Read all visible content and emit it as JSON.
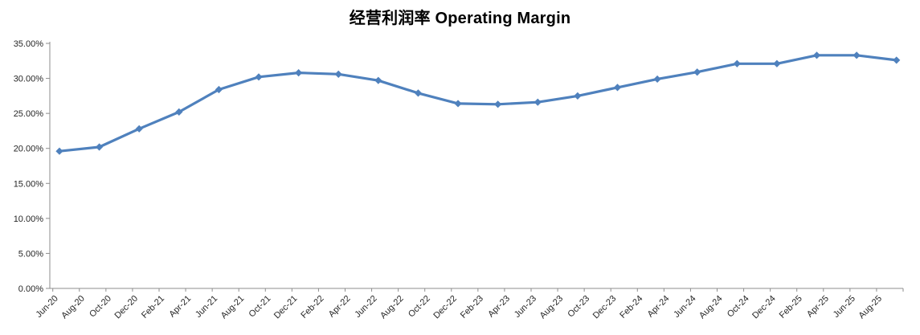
{
  "chart_data": {
    "type": "line",
    "title": "经营利润率 Operating Margin",
    "series": [
      {
        "name": "经营利润率 Operating Margin",
        "x": [
          "Jun-20",
          "Sep-20",
          "Dec-20",
          "Mar-21",
          "Jun-21",
          "Sep-21",
          "Dec-21",
          "Mar-22",
          "Jun-22",
          "Sep-22",
          "Dec-22",
          "Mar-23",
          "Jun-23",
          "Sep-23",
          "Dec-23",
          "Mar-24",
          "Jun-24",
          "Sep-24",
          "Dec-24",
          "Mar-25",
          "Jun-25",
          "Sep-25"
        ],
        "values": [
          19.6,
          20.2,
          22.8,
          25.2,
          28.4,
          30.2,
          30.8,
          30.6,
          29.7,
          27.9,
          26.4,
          26.3,
          26.6,
          27.5,
          28.7,
          29.9,
          30.9,
          32.1,
          32.1,
          33.3,
          33.3,
          32.6
        ],
        "unit": "%"
      }
    ],
    "x_axis": {
      "tick_labels": [
        "Jun-20",
        "Aug-20",
        "Oct-20",
        "Dec-20",
        "Feb-21",
        "Apr-21",
        "Jun-21",
        "Aug-21",
        "Oct-21",
        "Dec-21",
        "Feb-22",
        "Apr-22",
        "Jun-22",
        "Aug-22",
        "Oct-22",
        "Dec-22",
        "Feb-23",
        "Apr-23",
        "Jun-23",
        "Aug-23",
        "Oct-23",
        "Dec-23",
        "Feb-24",
        "Apr-24",
        "Jun-24",
        "Aug-24",
        "Oct-24",
        "Dec-24",
        "Feb-25",
        "Apr-25",
        "Jun-25",
        "Aug-25"
      ],
      "label_rotation_deg": -45,
      "data_interval_months": 3,
      "label_interval_months": 2
    },
    "y_axis": {
      "min": 0,
      "max": 35,
      "step": 5,
      "tick_labels": [
        "0.00%",
        "5.00%",
        "10.00%",
        "15.00%",
        "20.00%",
        "25.00%",
        "30.00%",
        "35.00%"
      ]
    },
    "style": {
      "line_color": "#4F81BD",
      "marker": "diamond",
      "marker_color": "#4F81BD",
      "axis_color": "#8E8E8E",
      "text_color": "#262626",
      "title_color": "#000000",
      "background": "#FFFFFF",
      "grid": false,
      "legend": false
    }
  }
}
